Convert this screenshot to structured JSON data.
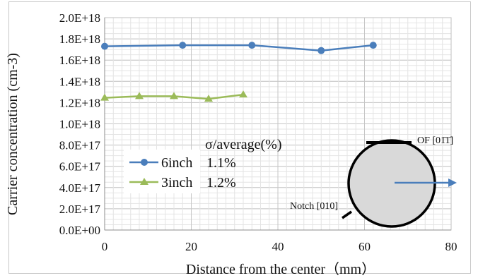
{
  "chart_data": {
    "type": "line",
    "xlabel": "Distance from the center（mm）",
    "ylabel": "Carrier concentration (cm-3)",
    "xlim": [
      0,
      80
    ],
    "ylim": [
      0,
      2e+18
    ],
    "x_ticks": [
      "0",
      "20",
      "40",
      "60",
      "80"
    ],
    "y_ticks": [
      "0.0E+00",
      "2.0E+17",
      "4.0E+17",
      "6.0E+17",
      "8.0E+17",
      "1.0E+18",
      "1.2E+18",
      "1.4E+18",
      "1.6E+18",
      "1.8E+18",
      "2.0E+18"
    ],
    "y_tick_values": [
      0,
      2e+17,
      4e+17,
      6e+17,
      8e+17,
      1e+18,
      1.2e+18,
      1.4e+18,
      1.6e+18,
      1.8e+18,
      2e+18
    ],
    "x_tick_values": [
      0,
      20,
      40,
      60,
      80
    ],
    "grid": true,
    "legend_position": "bottom-left",
    "series": [
      {
        "name": "6inch",
        "color": "#4a7ebb",
        "marker": "circle",
        "x": [
          0,
          18,
          34,
          50,
          62
        ],
        "y": [
          1.73e+18,
          1.74e+18,
          1.74e+18,
          1.69e+18,
          1.74e+18
        ]
      },
      {
        "name": "3inch",
        "color": "#9bbb59",
        "marker": "triangle",
        "x": [
          0,
          8,
          16,
          24,
          32
        ],
        "y": [
          1.245e+18,
          1.26e+18,
          1.26e+18,
          1.235e+18,
          1.275e+18
        ]
      }
    ],
    "stats_header": "σ/average(%)",
    "stats": [
      "1.1%",
      "1.2%"
    ],
    "annotations": {
      "of_label": "OF [01̄1̄]",
      "notch_label": "Notch [010]"
    }
  }
}
